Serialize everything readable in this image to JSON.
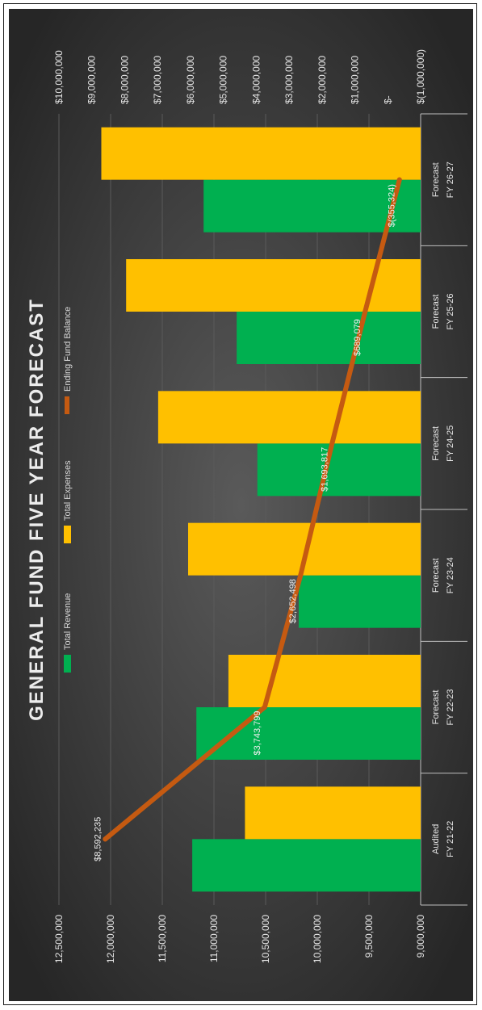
{
  "chart_data": {
    "type": "bar",
    "title": "GENERAL FUND FIVE YEAR FORECAST",
    "categories": [
      [
        "Audited",
        "FY 21-22"
      ],
      [
        "Forecast",
        "FY 22-23"
      ],
      [
        "Forecast",
        "FY 23-24"
      ],
      [
        "Forecast",
        "FY 24-25"
      ],
      [
        "Forecast",
        "FY 25-26"
      ],
      [
        "Forecast",
        "FY 26-27"
      ]
    ],
    "series": [
      {
        "name": "Total Revenue",
        "type": "bar",
        "axis": "left",
        "color": "#00b050",
        "values": [
          11210000,
          11170000,
          10180000,
          10580000,
          10780000,
          11100000
        ]
      },
      {
        "name": "Total Expenses",
        "type": "bar",
        "axis": "left",
        "color": "#ffc000",
        "values": [
          10700000,
          10860000,
          11250000,
          11540000,
          11850000,
          12090000
        ]
      },
      {
        "name": "Ending Fund Balance",
        "type": "line",
        "axis": "right",
        "color": "#c55a11",
        "values": [
          8592235,
          3743799,
          2652498,
          1693817,
          689079,
          -355324
        ],
        "labels": [
          "$8,592,235",
          "$3,743,799",
          "$2,652,498",
          "$1,693,817",
          "$689,079",
          "$(355,324)"
        ]
      }
    ],
    "left_axis": {
      "range": [
        9000000,
        12500000
      ],
      "ticks": [
        9000000,
        9500000,
        10000000,
        10500000,
        11000000,
        11500000,
        12000000,
        12500000
      ],
      "tick_labels": [
        "9,000,000",
        "9,500,000",
        "10,000,000",
        "10,500,000",
        "11,000,000",
        "11,500,000",
        "12,000,000",
        "12,500,000"
      ]
    },
    "right_axis": {
      "range": [
        -1000000,
        10000000
      ],
      "ticks": [
        -1000000,
        0,
        1000000,
        2000000,
        3000000,
        4000000,
        5000000,
        6000000,
        7000000,
        8000000,
        9000000,
        10000000
      ],
      "tick_labels": [
        "$(1,000,000)",
        "$-",
        "$1,000,000",
        "$2,000,000",
        "$3,000,000",
        "$4,000,000",
        "$5,000,000",
        "$6,000,000",
        "$7,000,000",
        "$8,000,000",
        "$9,000,000",
        "$10,000,000"
      ]
    },
    "grid": true,
    "legend": "top"
  }
}
